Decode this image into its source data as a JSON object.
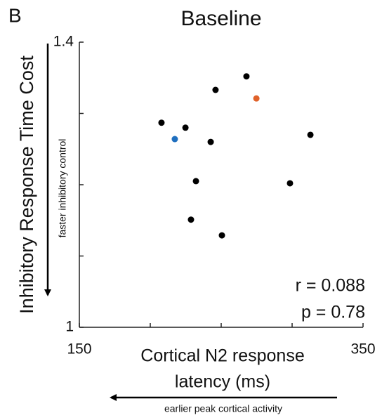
{
  "chart_data": {
    "type": "scatter",
    "panel_label": "B",
    "title": "Baseline",
    "ylabel": "Inhibitory Response Time Cost",
    "ylabel_note": "faster inhibitory control",
    "xlabel": [
      "Cortical N2 response",
      "latency (ms)"
    ],
    "xlabel_note": "earlier peak cortical activity",
    "annotations": [
      "r = 0.088",
      "p = 0.78"
    ],
    "xlim": [
      150,
      350
    ],
    "xticks": [
      150,
      350
    ],
    "xticks_unlabeled": [
      200,
      250,
      300
    ],
    "ylim": [
      1,
      1.4
    ],
    "yticks": [
      1,
      1.4
    ],
    "yticks_unlabeled": [
      1.1,
      1.2,
      1.3
    ],
    "series": [
      {
        "color": "#000000",
        "x": [
          207.9,
          224.8,
          242.6,
          246.0,
          267.8,
          312.9,
          298.5,
          232.2,
          228.7,
          250.5
        ],
        "values": [
          1.287,
          1.28,
          1.26,
          1.333,
          1.352,
          1.27,
          1.202,
          1.205,
          1.151,
          1.129
        ]
      },
      {
        "color": "#1f6fbf",
        "x": [
          217.3
        ],
        "values": [
          1.264
        ]
      },
      {
        "color": "#e0622a",
        "x": [
          274.8
        ],
        "values": [
          1.321
        ]
      }
    ]
  }
}
